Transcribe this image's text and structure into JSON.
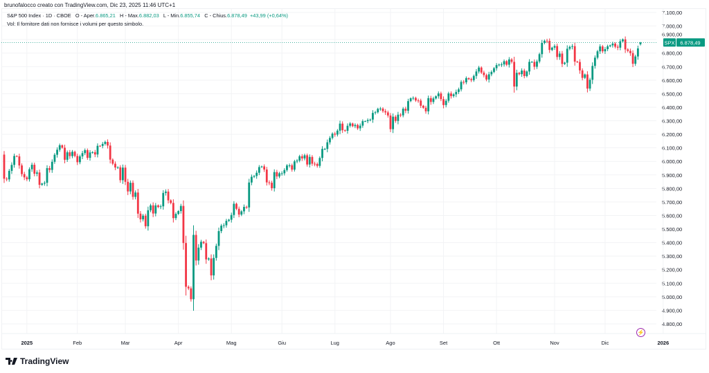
{
  "credit": "brunofalocco creato con TradingView.com, Dic 23, 2025 11:46 UTC+1",
  "legend": {
    "symbol": "S&P 500 Index · 1D · CBOE",
    "open_label": "O - Aper.",
    "open": "6.865,21",
    "high_label": "H - Max.",
    "high": "6.882,03",
    "low_label": "L - Min.",
    "low": "6.855,74",
    "close_label": "C - Chius.",
    "close": "6.878,49",
    "change": "+43,99 (+0,64%)",
    "volume_note": "Vol: Il fornitore dati non fornisce i volumi per questo simbolo."
  },
  "brand": "TradingView",
  "colors": {
    "up": "#089981",
    "down": "#f23645",
    "accent": "#9c27b0"
  },
  "chart_data": {
    "type": "candlestick",
    "title": "S&P 500 Index · 1D · CBOE",
    "ylim": [
      4750,
      7150
    ],
    "y_ticks": [
      4800,
      4900,
      5000,
      5100,
      5200,
      5300,
      5400,
      5500,
      5600,
      5700,
      5800,
      5900,
      6000,
      6100,
      6200,
      6300,
      6400,
      6500,
      6600,
      6700,
      6800,
      6900,
      7000,
      7100
    ],
    "y_tick_labels": [
      "4.800,00",
      "4.900,00",
      "5.000,00",
      "5.100,00",
      "5.200,00",
      "5.300,00",
      "5.400,00",
      "5.500,00",
      "5.600,00",
      "5.700,00",
      "5.800,00",
      "5.900,00",
      "6.000,00",
      "6.100,00",
      "6.200,00",
      "6.300,00",
      "6.400,00",
      "6.500,00",
      "6.600,00",
      "6.700,00",
      "6.800,00",
      "6.900,00",
      "7.000,00",
      "7.100,00"
    ],
    "x_labels": [
      {
        "label": "2025",
        "index": 9,
        "bold": true
      },
      {
        "label": "Feb",
        "index": 29
      },
      {
        "label": "Mar",
        "index": 48
      },
      {
        "label": "Apr",
        "index": 69
      },
      {
        "label": "Mag",
        "index": 90
      },
      {
        "label": "Giu",
        "index": 110
      },
      {
        "label": "Lug",
        "index": 131
      },
      {
        "label": "Ago",
        "index": 153
      },
      {
        "label": "Set",
        "index": 174
      },
      {
        "label": "Ott",
        "index": 195
      },
      {
        "label": "Nov",
        "index": 218
      },
      {
        "label": "Dic",
        "index": 238
      },
      {
        "label": "2026",
        "index": 261,
        "bold": true
      }
    ],
    "first_open": 6050,
    "closes": [
      5872,
      5867,
      5930,
      5974,
      6040,
      6037,
      5970,
      5906,
      5882,
      5868,
      5942,
      5975,
      5909,
      5918,
      5827,
      5836,
      5842,
      5950,
      5937,
      5997,
      6049,
      6086,
      6119,
      6101,
      6012,
      6067,
      6039,
      6071,
      6040,
      5994,
      6037,
      6061,
      6083,
      6026,
      6066,
      6068,
      6051,
      6115,
      6114,
      6129,
      6144,
      6117,
      6013,
      5983,
      5955,
      5956,
      5861,
      5954,
      5849,
      5778,
      5842,
      5738,
      5770,
      5614,
      5572,
      5599,
      5521,
      5639,
      5675,
      5615,
      5675,
      5663,
      5668,
      5767,
      5777,
      5712,
      5693,
      5581,
      5612,
      5633,
      5671,
      5397,
      5074,
      5062,
      4982,
      5457,
      5268,
      5363,
      5406,
      5396,
      5276,
      5283,
      5158,
      5287,
      5376,
      5485,
      5525,
      5528,
      5561,
      5569,
      5604,
      5687,
      5650,
      5607,
      5631,
      5664,
      5660,
      5844,
      5886,
      5892,
      5916,
      5958,
      5963,
      5940,
      5845,
      5842,
      5802,
      5921,
      5889,
      5912,
      5912,
      5936,
      5970,
      5971,
      5939,
      6000,
      6006,
      6038,
      6022,
      6045,
      5977,
      6033,
      5983,
      5981,
      5967,
      6025,
      6092,
      6092,
      6141,
      6173,
      6205,
      6198,
      6227,
      6279,
      6230,
      6226,
      6263,
      6280,
      6260,
      6269,
      6244,
      6264,
      6297,
      6297,
      6305,
      6309,
      6358,
      6363,
      6388,
      6390,
      6371,
      6362,
      6339,
      6238,
      6330,
      6299,
      6345,
      6340,
      6389,
      6374,
      6445,
      6466,
      6469,
      6450,
      6449,
      6411,
      6396,
      6370,
      6467,
      6439,
      6465,
      6481,
      6502,
      6460,
      6416,
      6448,
      6502,
      6482,
      6495,
      6513,
      6532,
      6587,
      6584,
      6615,
      6607,
      6600,
      6631,
      6664,
      6693,
      6656,
      6637,
      6605,
      6643,
      6661,
      6688,
      6711,
      6715,
      6716,
      6740,
      6714,
      6753,
      6735,
      6553,
      6654,
      6644,
      6671,
      6630,
      6664,
      6735,
      6735,
      6699,
      6738,
      6792,
      6875,
      6891,
      6890,
      6823,
      6840,
      6852,
      6771,
      6796,
      6720,
      6729,
      6832,
      6846,
      6851,
      6737,
      6734,
      6672,
      6617,
      6642,
      6538,
      6603,
      6705,
      6766,
      6813,
      6849,
      6813,
      6829,
      6850,
      6857,
      6870,
      6847,
      6840,
      6887,
      6901,
      6827,
      6816,
      6800,
      6721,
      6775,
      6834.5,
      6878.49
    ],
    "last_bar": {
      "open": 6865.21,
      "high": 6882.03,
      "low": 6855.74,
      "close": 6878.49
    },
    "last_price_label": {
      "symbol": "SPX",
      "value": "6.878,49"
    }
  }
}
